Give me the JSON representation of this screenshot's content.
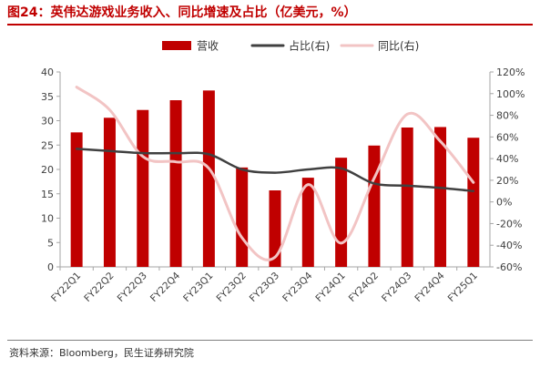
{
  "page": {
    "title": "图24：英伟达游戏业务收入、同比增速及占比（亿美元，%）",
    "source": "资料来源：Bloomberg，民生证券研究院"
  },
  "chart_data": {
    "type": "bar",
    "categories": [
      "FY22Q1",
      "FY22Q2",
      "FY22Q3",
      "FY22Q4",
      "FY23Q1",
      "FY23Q2",
      "FY23Q3",
      "FY23Q4",
      "FY24Q1",
      "FY24Q2",
      "FY24Q3",
      "FY24Q4",
      "FY25Q1"
    ],
    "series": [
      {
        "name": "营收",
        "type": "bar",
        "axis": "left",
        "color": "#c00000",
        "values": [
          27.6,
          30.6,
          32.2,
          34.2,
          36.2,
          20.4,
          15.7,
          18.3,
          22.4,
          24.9,
          28.6,
          28.7,
          26.5
        ]
      },
      {
        "name": "占比(右)",
        "type": "line",
        "axis": "right",
        "color": "#404040",
        "values": [
          49,
          47,
          45,
          45,
          44,
          30,
          27,
          30,
          31,
          17,
          15,
          13,
          10
        ]
      },
      {
        "name": "同比(右)",
        "type": "line",
        "axis": "right",
        "color": "#f2c4c4",
        "values": [
          106,
          85,
          42,
          37,
          31,
          -33,
          -51,
          16,
          -38,
          22,
          81,
          56,
          18
        ]
      }
    ],
    "yleft": {
      "min": 0,
      "max": 40,
      "step": 5,
      "ticks": [
        "0",
        "5",
        "10",
        "15",
        "20",
        "25",
        "30",
        "35",
        "40"
      ]
    },
    "yright": {
      "min": -60,
      "max": 120,
      "step": 20,
      "ticks": [
        "-60%",
        "-40%",
        "-20%",
        "0%",
        "20%",
        "40%",
        "60%",
        "80%",
        "100%",
        "120%"
      ]
    },
    "legend": {
      "position": "top-center"
    },
    "grid": false
  }
}
